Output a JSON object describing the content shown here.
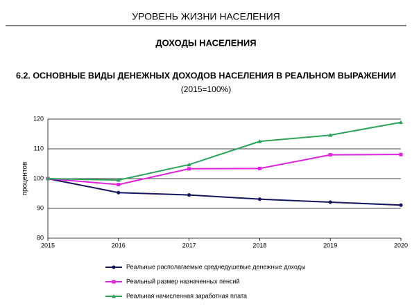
{
  "header": "УРОВЕНЬ ЖИЗНИ НАСЕЛЕНИЯ",
  "section": "ДОХОДЫ НАСЕЛЕНИЯ",
  "chart_data": {
    "type": "line",
    "title": "6.2. ОСНОВНЫЕ ВИДЫ ДЕНЕЖНЫХ ДОХОДОВ НАСЕЛЕНИЯ В РЕАЛЬНОМ ВЫРАЖЕНИИ",
    "subtitle": "(2015=100%)",
    "y_label": "процентов",
    "x": [
      2015,
      2016,
      2017,
      2018,
      2019,
      2020
    ],
    "xlim": [
      2015,
      2020
    ],
    "xticks": [
      2015,
      2016,
      2017,
      2018,
      2019,
      2020
    ],
    "ylim": [
      80,
      120
    ],
    "yticks": [
      80,
      90,
      100,
      110,
      120
    ],
    "grid": true,
    "legend": "bottom",
    "series": [
      {
        "name": "Реальные располагаемые среднедушевые денежные доходы",
        "color": "#141460",
        "marker": "circle",
        "values": [
          100,
          95.3,
          94.5,
          93.1,
          92.1,
          91.1
        ]
      },
      {
        "name": "Реальный размер назначенных пенсий",
        "color": "#e020e0",
        "marker": "square",
        "values": [
          100,
          98.0,
          103.3,
          103.4,
          108.0,
          108.1
        ]
      },
      {
        "name": "Реальная начисленная заработная плата",
        "color": "#2aa35a",
        "marker": "triangle",
        "values": [
          100,
          99.5,
          104.7,
          112.5,
          114.6,
          118.9
        ]
      }
    ]
  }
}
